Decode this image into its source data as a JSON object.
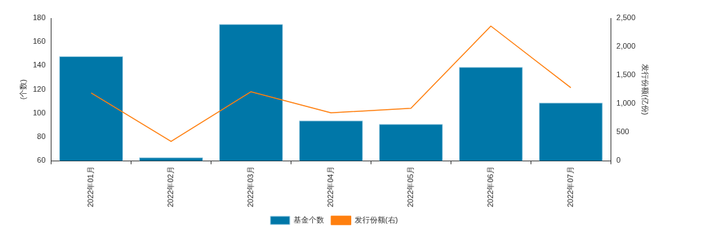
{
  "chart_data": {
    "type": "bar",
    "categories": [
      "2022年01月",
      "2022年02月",
      "2022年03月",
      "2022年04月",
      "2022年05月",
      "2022年06月",
      "2022年07月"
    ],
    "series": [
      {
        "name": "基金个数",
        "color": "#0077a8",
        "values": [
          148,
          63,
          175,
          94,
          91,
          139,
          109
        ]
      },
      {
        "name": "发行份额(右)",
        "type": "line",
        "axis": "y2",
        "color": "#ff7f0e",
        "values": [
          1190,
          340,
          1210,
          840,
          920,
          2360,
          1280
        ]
      }
    ],
    "ylabel": "(个数)",
    "y2label": "发行份额(亿份)",
    "ylim": [
      60,
      180
    ],
    "yticks": [
      60,
      80,
      100,
      120,
      140,
      160,
      180
    ],
    "y2lim": [
      0,
      2500
    ],
    "y2ticks": [
      0,
      {
        "value": 500,
        "label": "500"
      },
      {
        "value": 1000,
        "label": "1,000"
      },
      {
        "value": 1500,
        "label": "1,500"
      },
      {
        "value": 2000,
        "label": "2,000"
      },
      {
        "value": 2500,
        "label": "2,500"
      }
    ],
    "grid": false,
    "legend": "bottom",
    "marker": "none",
    "line_style": "solid"
  }
}
